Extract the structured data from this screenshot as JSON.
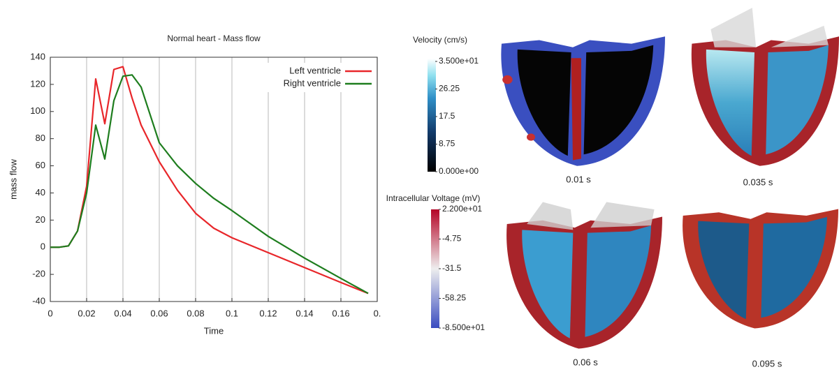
{
  "chart_data": {
    "type": "line",
    "title": "Normal heart - Mass flow",
    "x_label": "Time",
    "y_label": "mass flow",
    "x": [
      0,
      0.005,
      0.01,
      0.015,
      0.02,
      0.025,
      0.03,
      0.035,
      0.04,
      0.045,
      0.05,
      0.06,
      0.07,
      0.08,
      0.09,
      0.1,
      0.12,
      0.14,
      0.16,
      0.175
    ],
    "series": [
      {
        "name": "Left ventricle",
        "color": "#e8262a",
        "values": [
          0,
          0,
          1,
          12,
          45,
          124,
          91,
          131,
          133,
          110,
          90,
          63,
          42,
          25,
          14,
          7,
          -4,
          -15,
          -26,
          -34
        ]
      },
      {
        "name": "Right ventricle",
        "color": "#1e7d1e",
        "values": [
          0,
          0,
          1,
          12,
          40,
          90,
          65,
          108,
          126,
          127,
          118,
          77,
          60,
          47,
          36,
          27,
          8,
          -8,
          -23,
          -34
        ]
      }
    ],
    "xlim": [
      0,
      0.18
    ],
    "xticks": [
      0,
      0.02,
      0.04,
      0.06,
      0.08,
      0.1,
      0.12,
      0.14,
      0.16,
      {
        "value": 0.18,
        "label": "0."
      }
    ],
    "ylim": [
      -40,
      140
    ],
    "yticks": [
      -40,
      -20,
      0,
      20,
      40,
      60,
      80,
      100,
      120,
      140
    ],
    "grid": "x",
    "legend": "upper right"
  },
  "figure": {
    "velocity_colorbar": {
      "title": "Velocity (cm/s)",
      "labels": [
        "3.500e+01",
        "26.25",
        "17.5",
        "8.75",
        "0.000e+00"
      ]
    },
    "voltage_colorbar": {
      "title": "Intracellular Voltage (mV)",
      "labels": [
        "2.200e+01",
        "-4.75",
        "-31.5",
        "-58.25",
        "-8.500e+01"
      ]
    },
    "captions": [
      "0.01 s",
      "0.035 s",
      "0.06 s",
      "0.095 s"
    ]
  }
}
